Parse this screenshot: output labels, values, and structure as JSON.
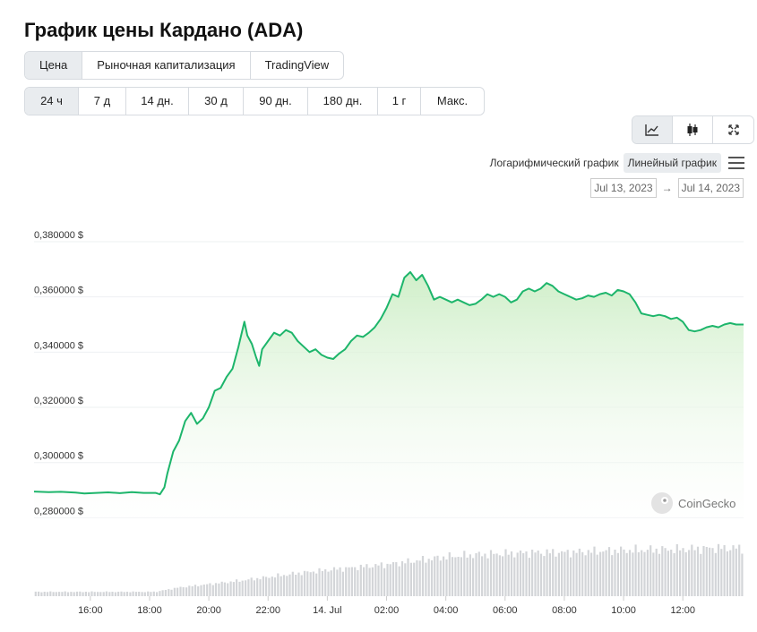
{
  "title": "График цены Кардано (ADA)",
  "view_tabs": [
    {
      "label": "Цена",
      "active": true
    },
    {
      "label": "Рыночная капитализация",
      "active": false
    },
    {
      "label": "TradingView",
      "active": false
    }
  ],
  "range_tabs": [
    {
      "label": "24 ч",
      "active": true
    },
    {
      "label": "7 д",
      "active": false
    },
    {
      "label": "14 дн.",
      "active": false
    },
    {
      "label": "30 д",
      "active": false
    },
    {
      "label": "90 дн.",
      "active": false
    },
    {
      "label": "180 дн.",
      "active": false
    },
    {
      "label": "1 г",
      "active": false
    },
    {
      "label": "Макс.",
      "active": false
    }
  ],
  "chart_style_buttons": [
    {
      "icon": "line-chart-icon",
      "active": true
    },
    {
      "icon": "candlestick-icon",
      "active": false
    },
    {
      "icon": "fullscreen-icon",
      "active": false
    }
  ],
  "scale_options": {
    "log_label": "Логарифмический график",
    "linear_label": "Линейный график",
    "active": "linear"
  },
  "date_range": {
    "from": "Jul 13, 2023",
    "arrow": "→",
    "to": "Jul 14, 2023"
  },
  "watermark": "CoinGecko",
  "colors": {
    "line": "#1db56b",
    "fill_top": "#cfeec9",
    "volume": "#d3d5d8",
    "grid": "#eef0f2"
  },
  "chart_data": {
    "type": "area",
    "price_unit": "$",
    "y_ticks": [
      "0,280000 $",
      "0,300000 $",
      "0,320000 $",
      "0,340000 $",
      "0,360000 $",
      "0,380000 $"
    ],
    "y_tick_values": [
      0.28,
      0.3,
      0.32,
      0.34,
      0.36,
      0.38
    ],
    "x_ticks": [
      {
        "label": "16:00",
        "hour": 16
      },
      {
        "label": "18:00",
        "hour": 18
      },
      {
        "label": "20:00",
        "hour": 20
      },
      {
        "label": "22:00",
        "hour": 22
      },
      {
        "label": "14. Jul",
        "hour": 24
      },
      {
        "label": "02:00",
        "hour": 26
      },
      {
        "label": "04:00",
        "hour": 28
      },
      {
        "label": "06:00",
        "hour": 30
      },
      {
        "label": "08:00",
        "hour": 32
      },
      {
        "label": "10:00",
        "hour": 34
      },
      {
        "label": "12:00",
        "hour": 36
      }
    ],
    "x_range_hours": [
      14.1,
      38.05
    ],
    "ylim": [
      0.2785,
      0.3855
    ],
    "price_series": {
      "hours": [
        14.1,
        14.6,
        15.0,
        15.5,
        15.8,
        16.2,
        16.6,
        17.0,
        17.4,
        17.8,
        18.2,
        18.35,
        18.5,
        18.6,
        18.8,
        19.0,
        19.2,
        19.4,
        19.6,
        19.8,
        20.0,
        20.2,
        20.4,
        20.6,
        20.8,
        21.0,
        21.2,
        21.3,
        21.45,
        21.6,
        21.7,
        21.8,
        22.0,
        22.2,
        22.4,
        22.6,
        22.8,
        23.0,
        23.2,
        23.4,
        23.6,
        23.8,
        24.0,
        24.2,
        24.4,
        24.6,
        24.8,
        25.0,
        25.2,
        25.4,
        25.6,
        25.8,
        26.0,
        26.2,
        26.4,
        26.6,
        26.8,
        27.0,
        27.2,
        27.4,
        27.6,
        27.8,
        28.0,
        28.2,
        28.4,
        28.6,
        28.8,
        29.0,
        29.2,
        29.4,
        29.6,
        29.8,
        30.0,
        30.2,
        30.4,
        30.6,
        30.8,
        31.0,
        31.2,
        31.4,
        31.6,
        31.8,
        32.0,
        32.2,
        32.4,
        32.6,
        32.8,
        33.0,
        33.2,
        33.4,
        33.6,
        33.8,
        34.0,
        34.2,
        34.4,
        34.6,
        34.8,
        35.0,
        35.2,
        35.4,
        35.6,
        35.8,
        36.0,
        36.2,
        36.4,
        36.6,
        36.8,
        37.0,
        37.2,
        37.4,
        37.6,
        37.8,
        38.05
      ],
      "prices": [
        0.2895,
        0.2893,
        0.2894,
        0.2891,
        0.2888,
        0.289,
        0.2892,
        0.2889,
        0.2893,
        0.289,
        0.289,
        0.2885,
        0.291,
        0.296,
        0.304,
        0.308,
        0.315,
        0.318,
        0.314,
        0.316,
        0.32,
        0.326,
        0.327,
        0.331,
        0.334,
        0.342,
        0.351,
        0.346,
        0.343,
        0.338,
        0.335,
        0.341,
        0.344,
        0.347,
        0.346,
        0.348,
        0.347,
        0.344,
        0.342,
        0.34,
        0.341,
        0.339,
        0.338,
        0.3375,
        0.3395,
        0.341,
        0.344,
        0.346,
        0.3455,
        0.347,
        0.349,
        0.352,
        0.356,
        0.361,
        0.36,
        0.367,
        0.369,
        0.366,
        0.368,
        0.364,
        0.359,
        0.36,
        0.359,
        0.358,
        0.359,
        0.358,
        0.357,
        0.3575,
        0.359,
        0.361,
        0.36,
        0.361,
        0.36,
        0.358,
        0.359,
        0.362,
        0.363,
        0.362,
        0.363,
        0.365,
        0.364,
        0.362,
        0.361,
        0.36,
        0.359,
        0.3595,
        0.3605,
        0.36,
        0.361,
        0.3615,
        0.3605,
        0.3625,
        0.362,
        0.361,
        0.358,
        0.354,
        0.3535,
        0.353,
        0.3535,
        0.353,
        0.352,
        0.3525,
        0.351,
        0.348,
        0.3475,
        0.348,
        0.349,
        0.3495,
        0.349,
        0.35,
        0.3505,
        0.35,
        0.35
      ]
    },
    "volume_series": {
      "hours": [
        14.1,
        18.2,
        19.0,
        20.0,
        21.0,
        22.0,
        23.0,
        24.0,
        25.0,
        26.0,
        27.0,
        28.0,
        29.0,
        30.0,
        31.0,
        32.0,
        33.0,
        34.0,
        35.0,
        36.0,
        37.0,
        38.05
      ],
      "relative_levels": [
        0.08,
        0.08,
        0.16,
        0.22,
        0.28,
        0.35,
        0.42,
        0.48,
        0.53,
        0.58,
        0.65,
        0.72,
        0.76,
        0.78,
        0.8,
        0.8,
        0.82,
        0.84,
        0.85,
        0.86,
        0.88,
        0.88
      ]
    }
  }
}
